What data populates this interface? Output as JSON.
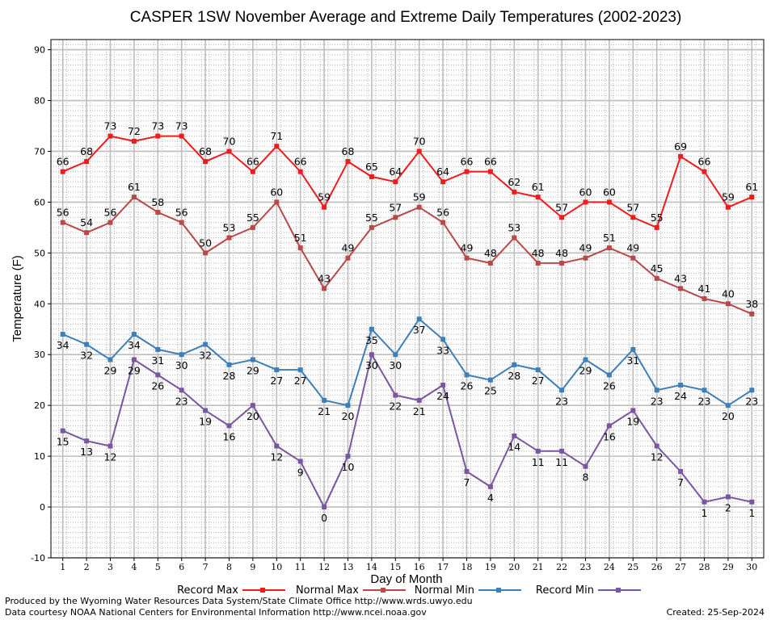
{
  "chart_data": {
    "type": "line",
    "title": "CASPER 1SW November Average and Extreme Daily Temperatures (2002-2023)",
    "xlabel": "Day of Month",
    "ylabel": "Temperature (F)",
    "x": [
      1,
      2,
      3,
      4,
      5,
      6,
      7,
      8,
      9,
      10,
      11,
      12,
      13,
      14,
      15,
      16,
      17,
      18,
      19,
      20,
      21,
      22,
      23,
      24,
      25,
      26,
      27,
      28,
      29,
      30
    ],
    "xlim": [
      0.5,
      30.5
    ],
    "ylim": [
      -10,
      92
    ],
    "yticks": [
      -10,
      0,
      10,
      20,
      30,
      40,
      50,
      60,
      70,
      80,
      90
    ],
    "grid": true,
    "legend_position": "bottom",
    "series": [
      {
        "name": "Record Max",
        "color": "#ee1c1c",
        "label_side": "above",
        "values": [
          66,
          68,
          73,
          72,
          73,
          73,
          68,
          70,
          66,
          71,
          66,
          59,
          68,
          65,
          64,
          70,
          64,
          66,
          66,
          62,
          61,
          57,
          60,
          60,
          57,
          55,
          69,
          66,
          59,
          61
        ]
      },
      {
        "name": "Normal Max",
        "color": "#b94848",
        "label_side": "above",
        "values": [
          56,
          54,
          56,
          61,
          58,
          56,
          50,
          53,
          55,
          60,
          51,
          43,
          49,
          55,
          57,
          59,
          56,
          49,
          48,
          53,
          48,
          48,
          49,
          51,
          49,
          45,
          43,
          41,
          40,
          38
        ]
      },
      {
        "name": "Normal Min",
        "color": "#3d7fb8",
        "label_side": "below",
        "values": [
          34,
          32,
          29,
          34,
          31,
          30,
          32,
          28,
          29,
          27,
          27,
          21,
          20,
          35,
          30,
          37,
          33,
          26,
          25,
          28,
          27,
          23,
          29,
          26,
          31,
          23,
          24,
          23,
          20,
          23
        ]
      },
      {
        "name": "Record Min",
        "color": "#7a55a0",
        "label_side": "below",
        "values": [
          15,
          13,
          12,
          29,
          26,
          23,
          19,
          16,
          20,
          12,
          9,
          0,
          10,
          30,
          22,
          21,
          24,
          7,
          4,
          14,
          11,
          11,
          8,
          16,
          19,
          12,
          7,
          1,
          2,
          1
        ]
      }
    ]
  },
  "footer": {
    "produced_by": "Produced by the Wyoming Water Resources Data System/State Climate Office http://www.wrds.uwyo.edu",
    "courtesy": "Data courtesy NOAA National Centers for Environmental Information http://www.ncei.noaa.gov",
    "created": "Created:  25-Sep-2024"
  }
}
